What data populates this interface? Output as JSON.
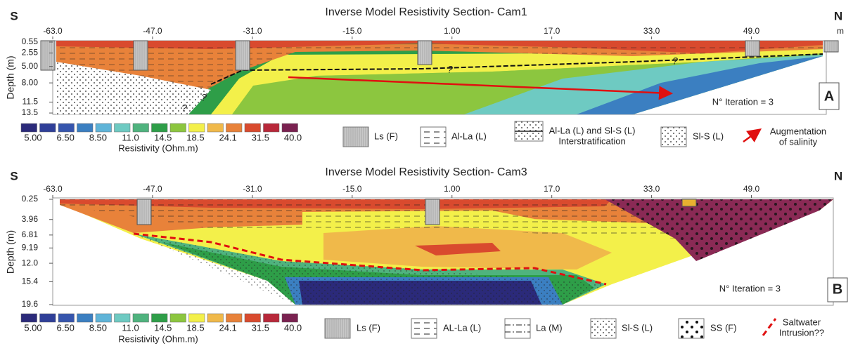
{
  "chart_data": [
    {
      "type": "contour",
      "title": "Inverse Model Resistivity Section- Cam1",
      "left_side": "S",
      "right_side": "N",
      "x_unit": "m",
      "ylabel": "Depth (m)",
      "xlim": [
        -63,
        61
      ],
      "ylim": [
        0.3,
        13.75
      ],
      "xticks": [
        {
          "value": -63,
          "label": "-63.0"
        },
        {
          "value": -47,
          "label": "-47.0"
        },
        {
          "value": -31,
          "label": "-31.0"
        },
        {
          "value": -15,
          "label": "-15.0"
        },
        {
          "value": 1,
          "label": "1.00"
        },
        {
          "value": 17,
          "label": "17.0"
        },
        {
          "value": 33,
          "label": "33.0"
        },
        {
          "value": 49,
          "label": "49.0"
        }
      ],
      "yticks": [
        0.55,
        2.55,
        {
          "value": 5,
          "label": "5.00"
        },
        {
          "value": 8,
          "label": "8.00"
        },
        11.5,
        13.5
      ],
      "iteration": "N° Iteration = 3",
      "panel_label": "A",
      "question_marks": [
        "?",
        "?",
        "?",
        "?"
      ],
      "colorbar": {
        "label": "Resistivity (Ohm.m)",
        "colors": [
          "#2b2a7a",
          "#2f3f98",
          "#3655ad",
          "#3b7fc1",
          "#5fb4d8",
          "#6ecac2",
          "#4fb37e",
          "#2e9e48",
          "#8cc63f",
          "#f3f04a",
          "#f0b94a",
          "#e8823a",
          "#d94a2e",
          "#b8283a",
          "#7a2150"
        ],
        "ticks": [
          {
            "value": 5,
            "label": "5.00"
          },
          {
            "value": 6.5,
            "label": "6.50"
          },
          {
            "value": 8.5,
            "label": "8.50"
          },
          {
            "value": 11,
            "label": "11.0"
          },
          14.5,
          18.5,
          24.1,
          31.5,
          {
            "value": 40,
            "label": "40.0"
          }
        ]
      },
      "legend": [
        [
          "Ls (F)"
        ],
        [
          "Al-La (L)"
        ],
        [
          "Al-La (L) and Sl-S (L)",
          "Interstratification"
        ],
        [
          "Sl-S (L)"
        ],
        [
          "Augmentation",
          "of salinity"
        ]
      ]
    },
    {
      "type": "contour",
      "title": "Inverse Model Resistivity Section- Cam3",
      "left_side": "S",
      "right_side": "N",
      "ylabel": "Depth (m)",
      "xlim": [
        -63,
        61
      ],
      "ylim": [
        0.25,
        19.6
      ],
      "xticks": [
        {
          "value": -63,
          "label": "-63.0"
        },
        {
          "value": -47,
          "label": "-47.0"
        },
        {
          "value": -31,
          "label": "-31.0"
        },
        {
          "value": -15,
          "label": "-15.0"
        },
        {
          "value": 1,
          "label": "1.00"
        },
        {
          "value": 17,
          "label": "17.0"
        },
        {
          "value": 33,
          "label": "33.0"
        },
        {
          "value": 49,
          "label": "49.0"
        }
      ],
      "yticks": [
        0.25,
        3.96,
        6.81,
        9.19,
        {
          "value": 12,
          "label": "12.0"
        },
        15.4,
        19.6
      ],
      "iteration": "N° Iteration = 3",
      "panel_label": "B",
      "colorbar": {
        "label": "Resistivity (Ohm.m)",
        "colors": [
          "#2b2a7a",
          "#2f3f98",
          "#3655ad",
          "#3b7fc1",
          "#5fb4d8",
          "#6ecac2",
          "#4fb37e",
          "#2e9e48",
          "#8cc63f",
          "#f3f04a",
          "#f0b94a",
          "#e8823a",
          "#d94a2e",
          "#b8283a",
          "#7a2150"
        ],
        "ticks": [
          {
            "value": 5,
            "label": "5.00"
          },
          {
            "value": 6.5,
            "label": "6.50"
          },
          {
            "value": 8.5,
            "label": "8.50"
          },
          {
            "value": 11,
            "label": "11.0"
          },
          14.5,
          18.5,
          24.1,
          31.5,
          {
            "value": 40,
            "label": "40.0"
          }
        ]
      },
      "legend": [
        [
          "Ls (F)"
        ],
        [
          "AL-La (L)"
        ],
        [
          "La (M)"
        ],
        [
          "Sl-S (L)"
        ],
        [
          "SS (F)"
        ],
        [
          "Saltwater",
          "Intrusion??"
        ]
      ]
    }
  ]
}
